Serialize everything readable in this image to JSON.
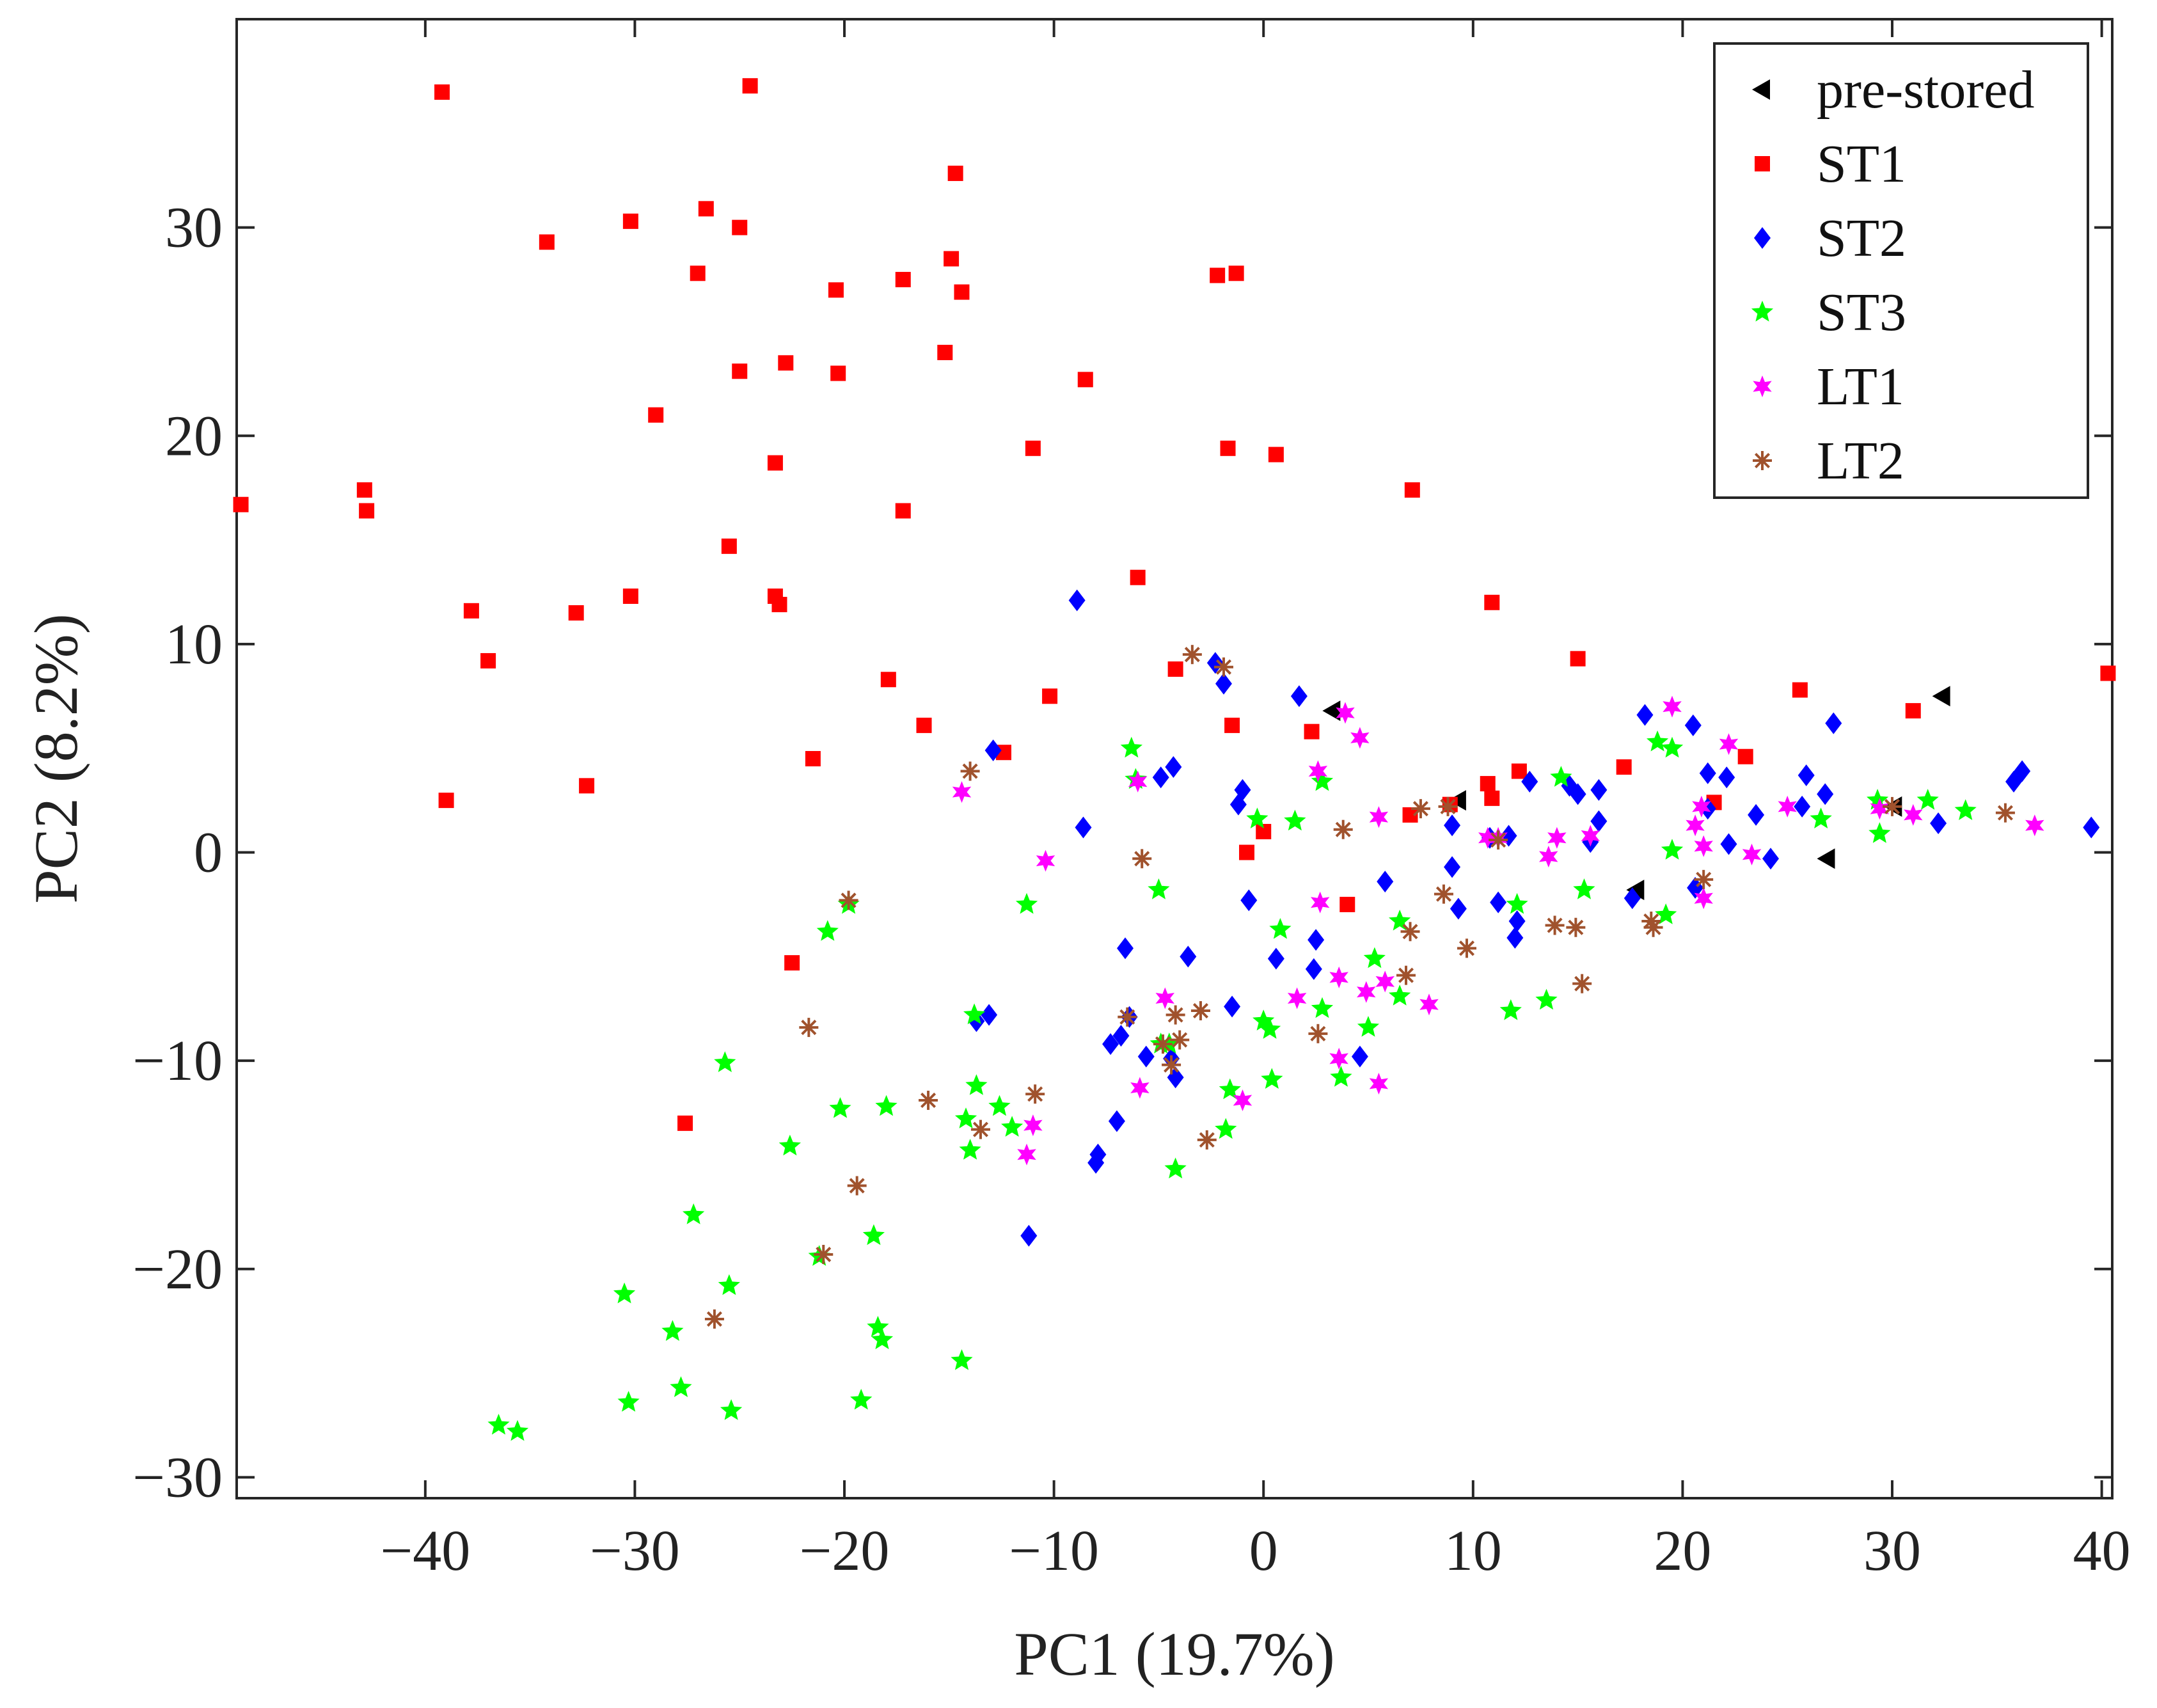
{
  "chart_data": {
    "type": "scatter",
    "title": "",
    "xlabel": "PC1 (19.7%)",
    "ylabel": "PC2 (8.2%)",
    "xlim": [
      -49,
      40.5
    ],
    "ylim": [
      -31,
      40
    ],
    "xticks": [
      -40,
      -30,
      -20,
      -10,
      0,
      10,
      20,
      30,
      40
    ],
    "yticks": [
      -30,
      -20,
      -10,
      0,
      10,
      20,
      30
    ],
    "xtick_labels": [
      "−40",
      "−30",
      "−20",
      "−10",
      "0",
      "10",
      "20",
      "30",
      "40"
    ],
    "ytick_labels": [
      "−30",
      "−20",
      "−10",
      "0",
      "10",
      "20",
      "30"
    ],
    "grid": false,
    "legend_position": "top-right",
    "series": [
      {
        "name": "pre-stored",
        "marker": "triangle-left",
        "color": "#000000",
        "points": [
          [
            3.3,
            6.8
          ],
          [
            9.3,
            2.5
          ],
          [
            17.8,
            -1.8
          ],
          [
            26.9,
            -0.3
          ],
          [
            30.1,
            2.2
          ],
          [
            32.4,
            7.5
          ]
        ]
      },
      {
        "name": "ST1",
        "marker": "square",
        "color": "#ff0000",
        "points": [
          [
            -39.2,
            36.5
          ],
          [
            -24.5,
            36.8
          ],
          [
            -14.7,
            32.6
          ],
          [
            -30.2,
            30.3
          ],
          [
            -26.6,
            30.9
          ],
          [
            -25.0,
            30.0
          ],
          [
            -34.2,
            29.3
          ],
          [
            -27.0,
            27.8
          ],
          [
            -14.9,
            28.5
          ],
          [
            -20.4,
            27.0
          ],
          [
            -17.2,
            27.5
          ],
          [
            -14.4,
            26.9
          ],
          [
            -2.2,
            27.7
          ],
          [
            -1.3,
            27.8
          ],
          [
            -25.0,
            23.1
          ],
          [
            -22.8,
            23.5
          ],
          [
            -20.3,
            23.0
          ],
          [
            -15.2,
            24.0
          ],
          [
            -8.5,
            22.7
          ],
          [
            -29.0,
            21.0
          ],
          [
            -11.0,
            19.4
          ],
          [
            -1.7,
            19.4
          ],
          [
            0.6,
            19.1
          ],
          [
            -48.8,
            16.7
          ],
          [
            -42.9,
            17.4
          ],
          [
            -42.8,
            16.4
          ],
          [
            -23.3,
            18.7
          ],
          [
            -17.2,
            16.4
          ],
          [
            7.1,
            17.4
          ],
          [
            -25.5,
            14.7
          ],
          [
            -6.0,
            13.2
          ],
          [
            -37.8,
            11.6
          ],
          [
            -32.8,
            11.5
          ],
          [
            -30.2,
            12.3
          ],
          [
            -23.3,
            12.3
          ],
          [
            -23.1,
            11.9
          ],
          [
            10.9,
            12.0
          ],
          [
            -37.0,
            9.2
          ],
          [
            -17.9,
            8.3
          ],
          [
            -4.2,
            8.8
          ],
          [
            -10.2,
            7.5
          ],
          [
            15.0,
            9.3
          ],
          [
            25.6,
            7.8
          ],
          [
            -16.2,
            6.1
          ],
          [
            -1.5,
            6.1
          ],
          [
            2.3,
            5.8
          ],
          [
            31.0,
            6.8
          ],
          [
            -21.5,
            4.5
          ],
          [
            -12.4,
            4.8
          ],
          [
            17.2,
            4.1
          ],
          [
            23.0,
            4.6
          ],
          [
            -39.0,
            2.5
          ],
          [
            -32.3,
            3.2
          ],
          [
            10.7,
            3.3
          ],
          [
            12.2,
            3.9
          ],
          [
            10.9,
            2.6
          ],
          [
            7.0,
            1.8
          ],
          [
            8.9,
            2.3
          ],
          [
            0.0,
            1.0
          ],
          [
            -0.8,
            0.0
          ],
          [
            21.5,
            2.4
          ],
          [
            40.3,
            8.6
          ],
          [
            4.0,
            -2.5
          ],
          [
            -22.5,
            -5.3
          ],
          [
            -27.6,
            -13.0
          ]
        ]
      },
      {
        "name": "ST2",
        "marker": "diamond",
        "color": "#0000ff",
        "points": [
          [
            -8.9,
            12.1
          ],
          [
            -2.3,
            9.1
          ],
          [
            -1.9,
            8.1
          ],
          [
            1.7,
            7.5
          ],
          [
            -12.9,
            4.9
          ],
          [
            -4.3,
            4.1
          ],
          [
            -4.9,
            3.6
          ],
          [
            -1.0,
            3.0
          ],
          [
            -1.2,
            2.3
          ],
          [
            -8.6,
            1.2
          ],
          [
            9.0,
            1.3
          ],
          [
            10.8,
            0.7
          ],
          [
            11.7,
            0.8
          ],
          [
            12.7,
            3.4
          ],
          [
            14.6,
            3.2
          ],
          [
            15.0,
            2.8
          ],
          [
            16.0,
            3.0
          ],
          [
            15.6,
            0.5
          ],
          [
            16.0,
            1.5
          ],
          [
            18.2,
            6.6
          ],
          [
            20.5,
            6.1
          ],
          [
            21.2,
            2.1
          ],
          [
            21.2,
            3.8
          ],
          [
            22.1,
            3.6
          ],
          [
            22.2,
            0.4
          ],
          [
            23.5,
            1.8
          ],
          [
            24.2,
            -0.3
          ],
          [
            25.7,
            2.2
          ],
          [
            25.9,
            3.7
          ],
          [
            26.8,
            2.8
          ],
          [
            27.2,
            6.2
          ],
          [
            32.2,
            1.4
          ],
          [
            35.8,
            3.4
          ],
          [
            36.2,
            3.9
          ],
          [
            39.5,
            1.2
          ],
          [
            -0.7,
            -2.3
          ],
          [
            0.6,
            -5.1
          ],
          [
            2.5,
            -4.2
          ],
          [
            2.4,
            -5.6
          ],
          [
            4.6,
            -9.8
          ],
          [
            5.8,
            -1.4
          ],
          [
            9.0,
            -0.7
          ],
          [
            9.3,
            -2.7
          ],
          [
            11.2,
            -2.4
          ],
          [
            12.1,
            -3.3
          ],
          [
            12.0,
            -4.1
          ],
          [
            17.6,
            -2.2
          ],
          [
            20.6,
            -1.7
          ],
          [
            -6.6,
            -4.6
          ],
          [
            -6.4,
            -7.9
          ],
          [
            -6.8,
            -8.8
          ],
          [
            -7.3,
            -9.2
          ],
          [
            -5.6,
            -9.8
          ],
          [
            -4.4,
            -9.9
          ],
          [
            -4.2,
            -10.8
          ],
          [
            -3.6,
            -5.0
          ],
          [
            -1.5,
            -7.4
          ],
          [
            -13.7,
            -8.1
          ],
          [
            -13.1,
            -7.8
          ],
          [
            -7.0,
            -12.9
          ],
          [
            -7.9,
            -14.5
          ],
          [
            -8.0,
            -14.9
          ],
          [
            -11.2,
            -18.4
          ]
        ]
      },
      {
        "name": "ST3",
        "marker": "star5",
        "color": "#00ff00",
        "points": [
          [
            -6.3,
            5.0
          ],
          [
            -6.1,
            3.5
          ],
          [
            -0.3,
            1.6
          ],
          [
            1.5,
            1.5
          ],
          [
            2.8,
            3.4
          ],
          [
            14.2,
            3.6
          ],
          [
            18.8,
            5.3
          ],
          [
            19.5,
            5.0
          ],
          [
            26.6,
            1.6
          ],
          [
            29.3,
            2.5
          ],
          [
            29.4,
            0.9
          ],
          [
            31.7,
            2.5
          ],
          [
            33.5,
            2.0
          ],
          [
            19.5,
            0.1
          ],
          [
            -19.8,
            -2.5
          ],
          [
            -20.8,
            -3.8
          ],
          [
            -11.3,
            -2.5
          ],
          [
            -5.0,
            -1.8
          ],
          [
            0.8,
            -3.7
          ],
          [
            5.3,
            -5.1
          ],
          [
            6.5,
            -3.3
          ],
          [
            6.5,
            -6.9
          ],
          [
            -13.8,
            -7.8
          ],
          [
            -4.9,
            -9.2
          ],
          [
            -4.5,
            -9.2
          ],
          [
            0.0,
            -8.1
          ],
          [
            0.3,
            -8.5
          ],
          [
            2.8,
            -7.5
          ],
          [
            5.0,
            -8.4
          ],
          [
            11.8,
            -7.6
          ],
          [
            13.5,
            -7.1
          ],
          [
            15.3,
            -1.8
          ],
          [
            19.2,
            -3.0
          ],
          [
            12.1,
            -2.5
          ],
          [
            -25.7,
            -10.1
          ],
          [
            -20.2,
            -12.3
          ],
          [
            -18.0,
            -12.2
          ],
          [
            -14.2,
            -12.8
          ],
          [
            -13.7,
            -11.2
          ],
          [
            -12.6,
            -12.2
          ],
          [
            -12.0,
            -13.2
          ],
          [
            -14.0,
            -14.3
          ],
          [
            -4.2,
            -15.2
          ],
          [
            -1.8,
            -13.3
          ],
          [
            -1.6,
            -11.4
          ],
          [
            0.4,
            -10.9
          ],
          [
            3.7,
            -10.8
          ],
          [
            -22.6,
            -14.1
          ],
          [
            -27.2,
            -17.4
          ],
          [
            -18.6,
            -18.4
          ],
          [
            -21.2,
            -19.4
          ],
          [
            -30.5,
            -21.2
          ],
          [
            -25.5,
            -20.8
          ],
          [
            -28.2,
            -23.0
          ],
          [
            -18.4,
            -22.8
          ],
          [
            -18.2,
            -23.4
          ],
          [
            -14.4,
            -24.4
          ],
          [
            -27.8,
            -25.7
          ],
          [
            -30.3,
            -26.4
          ],
          [
            -25.4,
            -26.8
          ],
          [
            -19.2,
            -26.3
          ],
          [
            -36.5,
            -27.5
          ],
          [
            -35.6,
            -27.8
          ]
        ]
      },
      {
        "name": "LT1",
        "marker": "star6",
        "color": "#ff00ff",
        "points": [
          [
            -14.4,
            2.9
          ],
          [
            -6.0,
            3.4
          ],
          [
            2.6,
            3.9
          ],
          [
            3.9,
            6.7
          ],
          [
            4.6,
            5.5
          ],
          [
            19.5,
            7.0
          ],
          [
            22.2,
            5.2
          ],
          [
            20.9,
            2.2
          ],
          [
            20.6,
            1.3
          ],
          [
            21.0,
            0.3
          ],
          [
            25.0,
            2.2
          ],
          [
            29.4,
            2.1
          ],
          [
            31.0,
            1.8
          ],
          [
            36.8,
            1.3
          ],
          [
            14.0,
            0.7
          ],
          [
            15.6,
            0.8
          ],
          [
            13.6,
            -0.2
          ],
          [
            11.2,
            0.7
          ],
          [
            10.7,
            0.7
          ],
          [
            21.0,
            -2.2
          ],
          [
            23.3,
            -0.1
          ],
          [
            -10.4,
            -0.4
          ],
          [
            2.7,
            -2.4
          ],
          [
            5.5,
            1.7
          ],
          [
            3.6,
            -6.0
          ],
          [
            4.9,
            -6.7
          ],
          [
            5.8,
            -6.2
          ],
          [
            7.9,
            -7.3
          ],
          [
            1.6,
            -7.0
          ],
          [
            -4.7,
            -7.0
          ],
          [
            -5.9,
            -11.3
          ],
          [
            -1.0,
            -11.9
          ],
          [
            -11.0,
            -13.1
          ],
          [
            -11.3,
            -14.5
          ],
          [
            3.6,
            -9.9
          ],
          [
            5.5,
            -11.1
          ]
        ]
      },
      {
        "name": "LT2",
        "marker": "asterisk",
        "color": "#a0522d",
        "points": [
          [
            -3.4,
            9.5
          ],
          [
            -1.9,
            8.9
          ],
          [
            -14.0,
            3.9
          ],
          [
            3.8,
            1.1
          ],
          [
            7.5,
            2.1
          ],
          [
            8.8,
            2.2
          ],
          [
            11.2,
            0.6
          ],
          [
            21.0,
            -1.3
          ],
          [
            35.4,
            1.9
          ],
          [
            30.0,
            2.2
          ],
          [
            -5.8,
            -0.3
          ],
          [
            -19.8,
            -2.3
          ],
          [
            -21.7,
            -8.4
          ],
          [
            -6.5,
            -7.9
          ],
          [
            -4.2,
            -7.8
          ],
          [
            -3.0,
            -7.6
          ],
          [
            -4.0,
            -9.0
          ],
          [
            -4.4,
            -10.2
          ],
          [
            -4.8,
            -9.2
          ],
          [
            2.6,
            -8.7
          ],
          [
            7.0,
            -3.8
          ],
          [
            6.8,
            -5.9
          ],
          [
            8.6,
            -2.0
          ],
          [
            9.7,
            -4.6
          ],
          [
            13.9,
            -3.5
          ],
          [
            14.9,
            -3.6
          ],
          [
            15.2,
            -6.3
          ],
          [
            18.5,
            -3.3
          ],
          [
            18.6,
            -3.6
          ],
          [
            -16.0,
            -11.9
          ],
          [
            -10.9,
            -11.6
          ],
          [
            -13.5,
            -13.3
          ],
          [
            -2.7,
            -13.8
          ],
          [
            -19.4,
            -16.0
          ],
          [
            -21.0,
            -19.3
          ],
          [
            -26.2,
            -22.4
          ]
        ]
      }
    ]
  }
}
